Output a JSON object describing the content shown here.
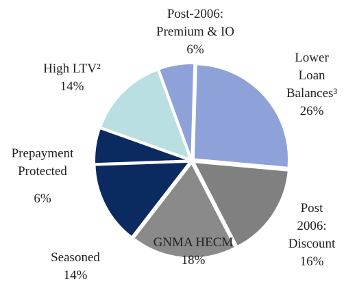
{
  "chart_data": {
    "type": "pie",
    "categories": [
      "Post-2006:\nPremium & IO",
      "Lower Loan\nBalances³",
      "Post 2006:\nDiscount",
      "GNMA HECM",
      "Seasoned",
      "Prepayment\nProtected",
      "High LTV²"
    ],
    "values": [
      6,
      26,
      16,
      18,
      14,
      6,
      14
    ],
    "value_labels": [
      "6%",
      "26%",
      "16%",
      "18%",
      "14%",
      "6%",
      "14%"
    ],
    "colors": [
      "#8ea2d9",
      "#8ea2d9",
      "#808080",
      "#8a8a8a",
      "#0b2a60",
      "#0b2a60",
      "#b9dfe2"
    ]
  }
}
